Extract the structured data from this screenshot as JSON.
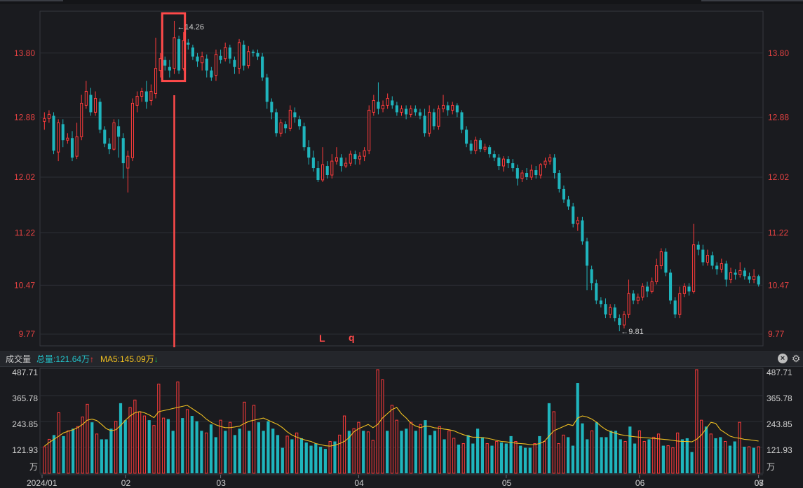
{
  "chart_data": [
    {
      "type": "candlestick",
      "y_ticks": [
        "13.80",
        "12.88",
        "12.02",
        "11.22",
        "10.47",
        "9.77"
      ],
      "ylim": [
        9.6,
        14.4
      ],
      "annotations": {
        "high_label": "14.26",
        "low_label": "9.81",
        "marker_l": "L",
        "marker_q": "q"
      },
      "colors": {
        "up": "#ff3b3b",
        "down": "#1fb5bd",
        "box": "#ff4a4a",
        "arrow": "#ff4a4a"
      },
      "candles": [
        [
          12.82,
          12.86,
          12.7,
          12.95
        ],
        [
          12.86,
          12.92,
          12.8,
          12.98
        ],
        [
          12.9,
          12.4,
          12.35,
          12.95
        ],
        [
          12.38,
          12.8,
          12.25,
          12.85
        ],
        [
          12.78,
          12.55,
          12.45,
          12.85
        ],
        [
          12.55,
          12.58,
          12.5,
          12.65
        ],
        [
          12.58,
          12.3,
          12.25,
          12.68
        ],
        [
          12.32,
          12.6,
          12.28,
          12.8
        ],
        [
          12.6,
          13.08,
          12.55,
          13.2
        ],
        [
          13.05,
          13.25,
          13.0,
          13.4
        ],
        [
          13.2,
          12.95,
          12.9,
          13.3
        ],
        [
          12.95,
          13.15,
          12.9,
          13.25
        ],
        [
          13.1,
          12.7,
          12.65,
          13.15
        ],
        [
          12.7,
          12.5,
          12.45,
          12.75
        ],
        [
          12.5,
          12.42,
          12.35,
          12.58
        ],
        [
          12.42,
          12.8,
          12.4,
          12.85
        ],
        [
          12.75,
          12.6,
          12.3,
          12.85
        ],
        [
          12.58,
          12.22,
          12.0,
          12.65
        ],
        [
          12.15,
          12.32,
          11.8,
          12.4
        ],
        [
          12.3,
          13.08,
          12.25,
          13.15
        ],
        [
          13.05,
          13.18,
          12.95,
          13.25
        ],
        [
          13.18,
          13.25,
          13.1,
          13.3
        ],
        [
          13.25,
          13.1,
          13.0,
          13.4
        ],
        [
          13.12,
          13.25,
          13.05,
          13.35
        ],
        [
          13.22,
          13.58,
          13.15,
          14.02
        ],
        [
          13.55,
          13.72,
          13.45,
          13.8
        ],
        [
          13.7,
          13.62,
          13.55,
          13.75
        ],
        [
          13.6,
          13.55,
          13.45,
          13.7
        ],
        [
          13.58,
          14.02,
          13.5,
          14.26
        ],
        [
          14.0,
          13.55,
          13.5,
          14.05
        ],
        [
          13.58,
          13.98,
          13.55,
          14.1
        ],
        [
          13.95,
          13.92,
          13.85,
          14.0
        ],
        [
          13.88,
          13.75,
          13.7,
          13.92
        ],
        [
          13.75,
          13.68,
          13.6,
          13.8
        ],
        [
          13.66,
          13.75,
          13.55,
          13.82
        ],
        [
          13.72,
          13.55,
          13.45,
          13.78
        ],
        [
          13.55,
          13.45,
          13.4,
          13.6
        ],
        [
          13.48,
          13.78,
          13.4,
          13.85
        ],
        [
          13.76,
          13.7,
          13.65,
          13.85
        ],
        [
          13.72,
          13.88,
          13.68,
          13.95
        ],
        [
          13.88,
          13.72,
          13.65,
          13.92
        ],
        [
          13.7,
          13.6,
          13.5,
          13.75
        ],
        [
          13.58,
          13.95,
          13.5,
          14.0
        ],
        [
          13.92,
          13.62,
          13.55,
          13.98
        ],
        [
          13.62,
          13.82,
          13.58,
          13.9
        ],
        [
          13.82,
          13.8,
          13.75,
          13.85
        ],
        [
          13.8,
          13.75,
          13.7,
          13.85
        ],
        [
          13.75,
          13.45,
          13.4,
          13.8
        ],
        [
          13.45,
          13.1,
          13.0,
          13.5
        ],
        [
          13.1,
          12.95,
          12.85,
          13.15
        ],
        [
          12.95,
          12.65,
          12.6,
          13.0
        ],
        [
          12.65,
          12.8,
          12.6,
          12.85
        ],
        [
          12.78,
          12.72,
          12.65,
          12.82
        ],
        [
          12.72,
          12.98,
          12.68,
          13.05
        ],
        [
          12.95,
          12.88,
          12.8,
          13.02
        ],
        [
          12.85,
          12.75,
          12.7,
          12.9
        ],
        [
          12.75,
          12.45,
          12.4,
          12.8
        ],
        [
          12.45,
          12.3,
          12.2,
          12.55
        ],
        [
          12.3,
          12.15,
          12.1,
          12.4
        ],
        [
          12.15,
          11.98,
          11.95,
          12.25
        ],
        [
          11.98,
          12.2,
          11.95,
          12.45
        ],
        [
          12.18,
          12.05,
          12.0,
          12.25
        ],
        [
          12.05,
          12.25,
          12.0,
          12.35
        ],
        [
          12.25,
          12.3,
          12.2,
          12.45
        ],
        [
          12.3,
          12.18,
          12.1,
          12.35
        ],
        [
          12.18,
          12.22,
          12.15,
          12.3
        ],
        [
          12.22,
          12.35,
          12.18,
          12.4
        ],
        [
          12.35,
          12.28,
          12.2,
          12.4
        ],
        [
          12.28,
          12.32,
          12.2,
          12.38
        ],
        [
          12.32,
          12.4,
          12.25,
          12.45
        ],
        [
          12.4,
          12.98,
          12.35,
          13.05
        ],
        [
          12.95,
          13.12,
          12.9,
          13.2
        ],
        [
          13.1,
          13.0,
          12.92,
          13.38
        ],
        [
          13.0,
          13.05,
          12.95,
          13.12
        ],
        [
          13.05,
          13.15,
          13.0,
          13.22
        ],
        [
          13.12,
          13.05,
          13.0,
          13.18
        ],
        [
          13.05,
          12.95,
          12.9,
          13.1
        ],
        [
          12.95,
          13.0,
          12.9,
          13.05
        ],
        [
          13.0,
          12.92,
          12.85,
          13.05
        ],
        [
          12.92,
          13.0,
          12.88,
          13.05
        ],
        [
          13.0,
          12.95,
          12.9,
          13.05
        ],
        [
          12.95,
          12.9,
          12.85,
          13.0
        ],
        [
          12.9,
          12.65,
          12.6,
          13.0
        ],
        [
          12.65,
          12.95,
          12.6,
          13.05
        ],
        [
          12.95,
          12.75,
          12.7,
          13.0
        ],
        [
          12.75,
          13.0,
          12.7,
          13.05
        ],
        [
          13.0,
          13.05,
          12.95,
          13.2
        ],
        [
          13.05,
          12.98,
          12.9,
          13.1
        ],
        [
          12.98,
          13.05,
          12.92,
          13.1
        ],
        [
          13.05,
          12.95,
          12.88,
          13.08
        ],
        [
          12.95,
          12.7,
          12.65,
          12.98
        ],
        [
          12.7,
          12.5,
          12.45,
          12.75
        ],
        [
          12.5,
          12.4,
          12.35,
          12.55
        ],
        [
          12.4,
          12.55,
          12.35,
          12.6
        ],
        [
          12.55,
          12.42,
          12.38,
          12.58
        ],
        [
          12.42,
          12.45,
          12.38,
          12.5
        ],
        [
          12.45,
          12.35,
          12.3,
          12.48
        ],
        [
          12.35,
          12.3,
          12.25,
          12.4
        ],
        [
          12.3,
          12.18,
          12.12,
          12.35
        ],
        [
          12.18,
          12.28,
          12.1,
          12.32
        ],
        [
          12.28,
          12.22,
          12.15,
          12.32
        ],
        [
          12.22,
          12.15,
          12.1,
          12.28
        ],
        [
          12.15,
          12.0,
          11.9,
          12.2
        ],
        [
          12.0,
          12.08,
          11.95,
          12.12
        ],
        [
          12.08,
          12.02,
          11.98,
          12.15
        ],
        [
          12.02,
          12.12,
          11.98,
          12.2
        ],
        [
          12.12,
          12.05,
          12.0,
          12.18
        ],
        [
          12.05,
          12.2,
          12.0,
          12.22
        ],
        [
          12.2,
          12.25,
          12.15,
          12.3
        ],
        [
          12.25,
          12.3,
          12.2,
          12.35
        ],
        [
          12.3,
          12.08,
          12.0,
          12.35
        ],
        [
          12.08,
          11.85,
          11.8,
          12.12
        ],
        [
          11.85,
          11.7,
          11.65,
          11.9
        ],
        [
          11.7,
          11.6,
          11.55,
          11.75
        ],
        [
          11.6,
          11.35,
          11.3,
          11.65
        ],
        [
          11.35,
          11.4,
          11.25,
          11.45
        ],
        [
          11.4,
          11.1,
          11.05,
          11.45
        ],
        [
          11.1,
          10.75,
          10.4,
          11.15
        ],
        [
          10.7,
          10.5,
          10.4,
          10.75
        ],
        [
          10.5,
          10.25,
          10.2,
          10.55
        ],
        [
          10.25,
          10.2,
          10.15,
          10.3
        ],
        [
          10.2,
          10.05,
          10.0,
          10.28
        ],
        [
          10.05,
          10.15,
          10.0,
          10.2
        ],
        [
          10.15,
          10.0,
          9.95,
          10.2
        ],
        [
          10.0,
          9.9,
          9.81,
          10.05
        ],
        [
          9.9,
          10.05,
          9.85,
          10.1
        ],
        [
          10.05,
          10.35,
          10.0,
          10.55
        ],
        [
          10.35,
          10.25,
          10.2,
          10.4
        ],
        [
          10.25,
          10.3,
          10.2,
          10.35
        ],
        [
          10.3,
          10.45,
          10.25,
          10.5
        ],
        [
          10.45,
          10.38,
          10.3,
          10.52
        ],
        [
          10.38,
          10.52,
          10.35,
          10.58
        ],
        [
          10.52,
          10.75,
          10.48,
          10.85
        ],
        [
          10.75,
          10.95,
          10.7,
          11.0
        ],
        [
          10.95,
          10.65,
          10.6,
          11.0
        ],
        [
          10.65,
          10.25,
          10.2,
          10.7
        ],
        [
          10.25,
          10.05,
          10.0,
          10.3
        ],
        [
          10.05,
          10.35,
          10.0,
          10.45
        ],
        [
          10.35,
          10.45,
          10.3,
          10.5
        ],
        [
          10.45,
          10.38,
          10.32,
          10.5
        ],
        [
          10.38,
          11.05,
          10.35,
          11.35
        ],
        [
          11.05,
          10.98,
          10.9,
          11.1
        ],
        [
          10.98,
          10.8,
          10.75,
          11.05
        ],
        [
          10.8,
          10.9,
          10.75,
          10.98
        ],
        [
          10.9,
          10.75,
          10.7,
          10.95
        ],
        [
          10.75,
          10.7,
          10.62,
          10.8
        ],
        [
          10.7,
          10.78,
          10.65,
          10.85
        ],
        [
          10.78,
          10.55,
          10.45,
          10.82
        ],
        [
          10.55,
          10.65,
          10.5,
          10.72
        ],
        [
          10.65,
          10.62,
          10.55,
          10.7
        ],
        [
          10.62,
          10.68,
          10.58,
          10.8
        ],
        [
          10.68,
          10.6,
          10.55,
          10.72
        ],
        [
          10.6,
          10.55,
          10.5,
          10.65
        ],
        [
          10.55,
          10.6,
          10.5,
          10.7
        ],
        [
          10.6,
          10.48,
          10.45,
          10.62
        ]
      ]
    },
    {
      "type": "bar",
      "title": "成交量",
      "total_label": "总量:121.64万",
      "ma5_label": "MA5:145.09万",
      "y_ticks": [
        "487.71",
        "365.78",
        "243.85",
        "121.93"
      ],
      "unit": "万",
      "ylim": [
        0,
        487.71
      ],
      "x_tick_labels": [
        "2024/01",
        "02",
        "03",
        "04",
        "05",
        "06",
        "07",
        "08"
      ],
      "colors": {
        "up": "#ff3b3b",
        "down": "#1fb5bd",
        "ma5": "#f0c020"
      },
      "volumes": [
        125,
        160,
        180,
        285,
        175,
        200,
        210,
        220,
        265,
        325,
        240,
        185,
        160,
        160,
        210,
        245,
        330,
        250,
        310,
        345,
        290,
        270,
        250,
        225,
        420,
        260,
        255,
        200,
        430,
        260,
        300,
        270,
        245,
        200,
        190,
        230,
        170,
        250,
        200,
        240,
        180,
        210,
        335,
        200,
        320,
        240,
        200,
        245,
        210,
        180,
        120,
        175,
        160,
        190,
        165,
        145,
        130,
        140,
        125,
        115,
        150,
        150,
        180,
        270,
        200,
        210,
        240,
        200,
        195,
        155,
        490,
        440,
        200,
        320,
        250,
        200,
        210,
        240,
        200,
        230,
        250,
        180,
        200,
        220,
        160,
        200,
        165,
        135,
        140,
        180,
        140,
        210,
        170,
        140,
        130,
        150,
        145,
        140,
        175,
        150,
        130,
        120,
        120,
        140,
        175,
        150,
        330,
        290,
        140,
        180,
        170,
        130,
        425,
        235,
        160,
        200,
        240,
        170,
        170,
        200,
        200,
        160,
        150,
        220,
        140,
        200,
        150,
        160,
        170,
        185,
        130,
        130,
        120,
        190,
        160,
        165,
        100,
        495,
        250,
        220,
        185,
        165,
        170,
        150,
        130,
        150,
        240,
        125,
        125,
        120,
        125
      ],
      "ma5": [
        128,
        145,
        160,
        175,
        190,
        198,
        205,
        215,
        230,
        250,
        255,
        248,
        230,
        210,
        200,
        205,
        225,
        250,
        270,
        285,
        290,
        285,
        275,
        262,
        290,
        295,
        300,
        305,
        310,
        315,
        320,
        305,
        290,
        275,
        255,
        240,
        228,
        220,
        215,
        215,
        218,
        222,
        235,
        245,
        250,
        255,
        260,
        250,
        240,
        230,
        215,
        195,
        180,
        170,
        162,
        155,
        150,
        140,
        135,
        130,
        128,
        132,
        140,
        150,
        168,
        195,
        210,
        220,
        230,
        215,
        230,
        260,
        280,
        300,
        310,
        280,
        260,
        235,
        222,
        215,
        222,
        220,
        214,
        212,
        208,
        205,
        200,
        190,
        182,
        175,
        170,
        170,
        168,
        165,
        160,
        155,
        150,
        148,
        145,
        142,
        140,
        138,
        135,
        135,
        140,
        150,
        175,
        200,
        210,
        220,
        230,
        225,
        260,
        270,
        265,
        255,
        240,
        220,
        205,
        195,
        188,
        182,
        178,
        175,
        172,
        170,
        168,
        166,
        164,
        162,
        160,
        158,
        155,
        152,
        150,
        150,
        148,
        160,
        180,
        210,
        240,
        235,
        205,
        190,
        175,
        168,
        165,
        160,
        158,
        155,
        152
      ]
    }
  ]
}
